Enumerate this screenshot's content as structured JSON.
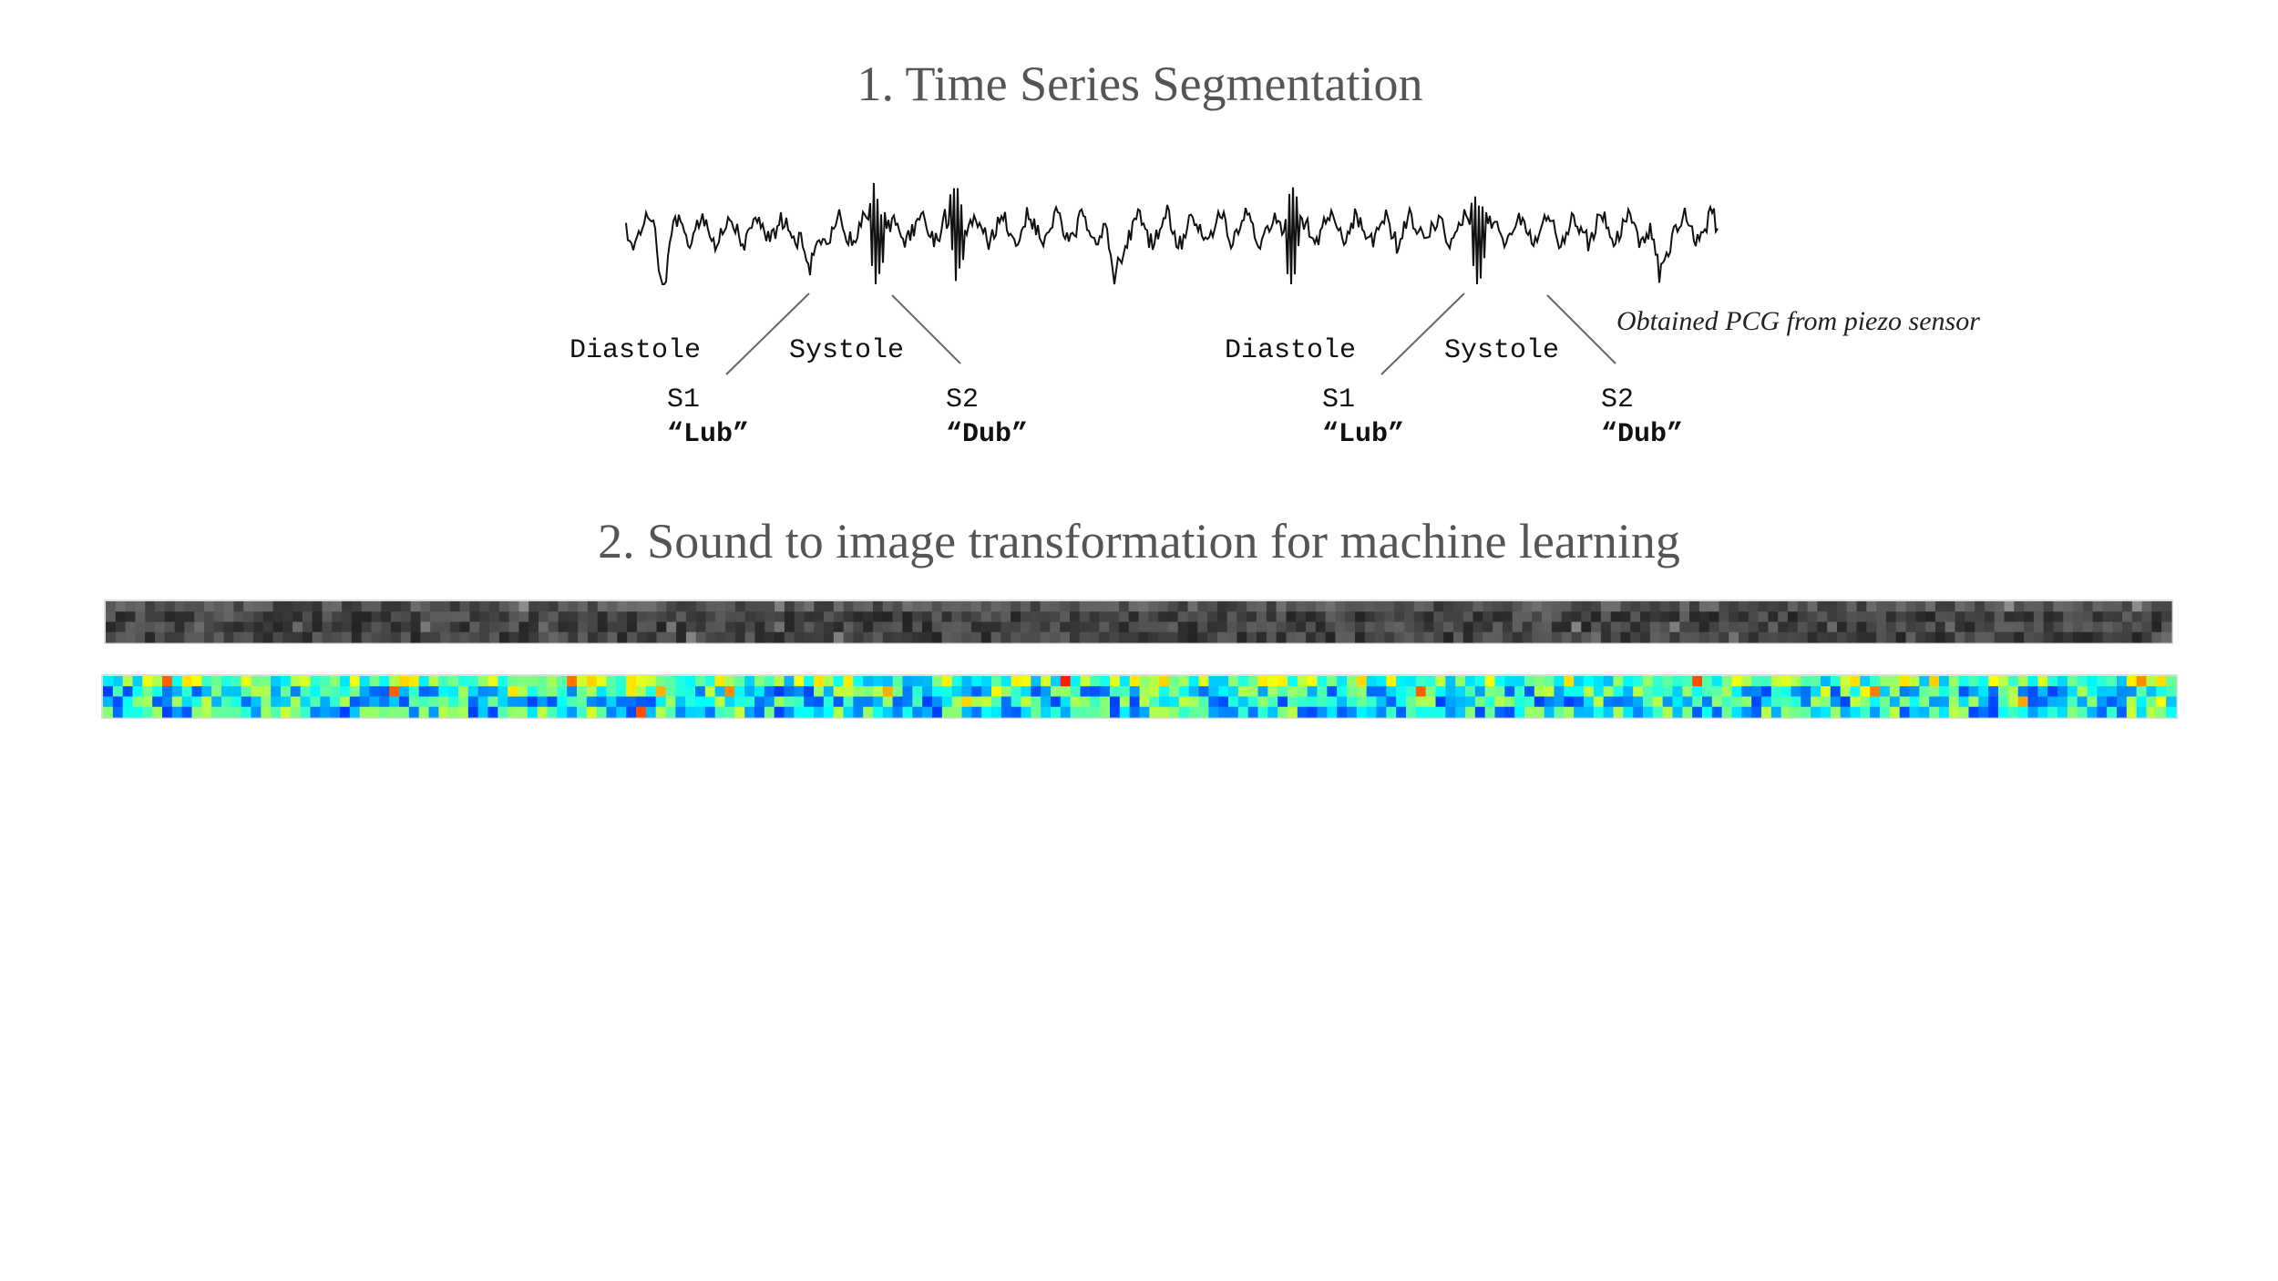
{
  "section1": {
    "title": "1. Time Series Segmentation",
    "groups": [
      {
        "diastole": "Diastole",
        "systole": "Systole",
        "s1": "S1",
        "s1_sound": "“Lub”",
        "s2": "S2",
        "s2_sound": "“Dub”"
      },
      {
        "diastole": "Diastole",
        "systole": "Systole",
        "s1": "S1",
        "s1_sound": "“Lub”",
        "s2": "S2",
        "s2_sound": "“Dub”"
      }
    ],
    "caption": "Obtained PCG from piezo sensor"
  },
  "section2": {
    "title": "2. Sound to image transformation for machine learning"
  }
}
